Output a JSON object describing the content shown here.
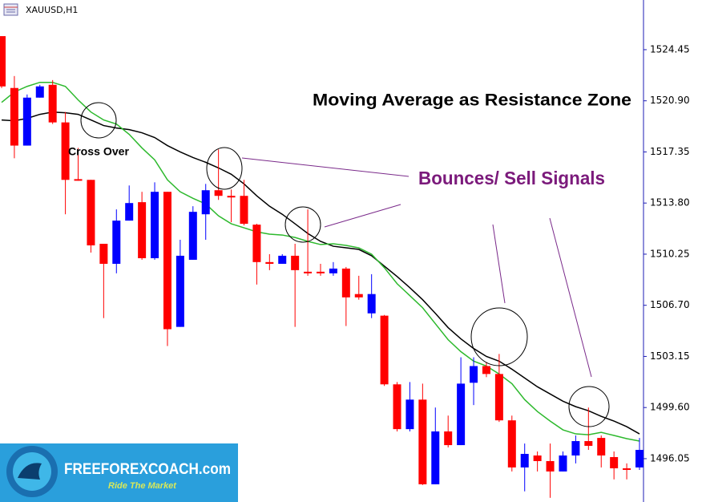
{
  "chart_data": {
    "type": "candlestick",
    "title": "XAUUSD,H1",
    "annotations": [
      "Moving Average as Resistance Zone",
      "Bounces/ Sell Signals",
      "Cross Over"
    ],
    "logo": {
      "name": "FREEFOREXCOACH.com",
      "tagline": "Ride The Market"
    },
    "up_color": "#0000ff",
    "down_color": "#ff0000",
    "ylim": [
      1493.04,
      1527.9
    ],
    "yticks": [
      1524.45,
      {
        "value": 1520.9,
        "label": "1520.90"
      },
      1517.35,
      {
        "value": 1513.8,
        "label": "1513.80"
      },
      1510.25,
      {
        "value": 1506.7,
        "label": "1506.70"
      },
      1503.15,
      {
        "value": 1499.6,
        "label": "1499.60"
      },
      1496.05
    ],
    "open": [
      1525.39,
      1521.79,
      1517.79,
      1521.12,
      1522.01,
      1519.4,
      1515.46,
      1515.41,
      1510.97,
      1509.58,
      1512.58,
      1513.86,
      1509.97,
      1514.58,
      1505.2,
      1509.86,
      1513.02,
      1514.69,
      1514.3,
      1514.3,
      1512.3,
      1509.7,
      1509.58,
      1510.14,
      1509.03,
      1509.03,
      1508.92,
      1509.25,
      1507.48,
      1506.14,
      1505.98,
      1501.21,
      1498.1,
      1500.15,
      1494.27,
      1497.94,
      1496.99,
      1501.32,
      1502.48,
      1501.93,
      1498.71,
      1495.44,
      1496.27,
      1495.88,
      1495.16,
      1496.27,
      1497.27,
      1497.49,
      1496.16,
      1495.38,
      1495.44
    ],
    "high": [
      1525.39,
      1522.62,
      1521.34,
      1522.01,
      1522.34,
      1520.12,
      1517.63,
      1515.41,
      1510.97,
      1513.36,
      1515.02,
      1514.58,
      1515.24,
      1514.58,
      1511.25,
      1513.58,
      1515.13,
      1517.52,
      1514.74,
      1515.41,
      1512.36,
      1510.25,
      1510.25,
      1510.97,
      1513.36,
      1509.58,
      1509.7,
      1509.36,
      1508.75,
      1508.86,
      1506.03,
      1501.37,
      1501.37,
      1501.26,
      1499.6,
      1499.04,
      1503.09,
      1503.09,
      1502.76,
      1503.32,
      1499.04,
      1497.1,
      1496.55,
      1497.1,
      1496.55,
      1497.66,
      1499.6,
      1497.66,
      1496.55,
      1495.72,
      1497.49
    ],
    "low": [
      1521.79,
      1516.91,
      1517.79,
      1521.12,
      1519.29,
      1513.02,
      1515.35,
      1510.36,
      1505.81,
      1508.92,
      1512.58,
      1509.86,
      1509.86,
      1503.87,
      1505.2,
      1509.86,
      1511.25,
      1514.02,
      1512.47,
      1512.25,
      1508.14,
      1509.14,
      1509.58,
      1505.2,
      1508.75,
      1508.75,
      1508.75,
      1505.26,
      1507.09,
      1505.81,
      1501.1,
      1497.94,
      1497.94,
      1494.22,
      1494.27,
      1496.83,
      1496.99,
      1499.77,
      1501.71,
      1498.6,
      1495.16,
      1493.78,
      1495.16,
      1493.33,
      1495.16,
      1495.72,
      1496.66,
      1495.44,
      1494.61,
      1494.61,
      1495.27
    ],
    "close": [
      1521.9,
      1517.79,
      1521.12,
      1521.9,
      1519.4,
      1515.41,
      1515.35,
      1510.86,
      1509.58,
      1512.58,
      1513.8,
      1509.97,
      1514.58,
      1505.04,
      1510.14,
      1513.19,
      1514.69,
      1514.3,
      1514.19,
      1512.36,
      1509.7,
      1509.58,
      1510.14,
      1509.14,
      1508.92,
      1508.92,
      1509.25,
      1507.25,
      1507.25,
      1507.48,
      1501.21,
      1498.1,
      1500.15,
      1494.27,
      1497.94,
      1496.99,
      1501.26,
      1502.48,
      1501.93,
      1498.71,
      1495.44,
      1496.38,
      1495.88,
      1495.16,
      1496.27,
      1497.27,
      1496.94,
      1496.27,
      1495.38,
      1495.27,
      1496.66
    ],
    "series": [
      {
        "color": "#000000",
        "values": [
          1519.57,
          1519.51,
          1519.68,
          1519.96,
          1520.12,
          1520.07,
          1519.96,
          1519.57,
          1519.18,
          1519.01,
          1518.9,
          1518.68,
          1518.35,
          1517.79,
          1517.35,
          1516.96,
          1516.63,
          1516.24,
          1515.8,
          1515.13,
          1514.3,
          1513.58,
          1513.02,
          1512.36,
          1511.69,
          1511.14,
          1510.8,
          1510.69,
          1510.58,
          1510.14,
          1509.42,
          1508.7,
          1507.92,
          1507.09,
          1506.14,
          1505.15,
          1504.37,
          1503.7,
          1503.15,
          1502.82,
          1502.26,
          1501.65,
          1501.04,
          1500.54,
          1500.04,
          1499.66,
          1499.38,
          1498.99,
          1498.66,
          1498.27,
          1497.77
        ]
      },
      {
        "color": "#2db92d",
        "values": [
          1520.79,
          1521.51,
          1521.9,
          1522.18,
          1522.18,
          1521.9,
          1520.96,
          1520.12,
          1519.57,
          1519.29,
          1518.57,
          1517.63,
          1516.8,
          1515.41,
          1514.58,
          1514.13,
          1513.74,
          1512.91,
          1512.36,
          1512.08,
          1511.8,
          1511.64,
          1511.58,
          1511.41,
          1511.14,
          1510.92,
          1510.97,
          1510.86,
          1510.69,
          1510.25,
          1509.31,
          1508.2,
          1507.37,
          1506.53,
          1505.42,
          1504.31,
          1503.48,
          1502.82,
          1502.48,
          1501.93,
          1501.26,
          1500.15,
          1499.32,
          1498.66,
          1498.05,
          1497.77,
          1497.71,
          1497.88,
          1497.66,
          1497.44,
          1497.27
        ]
      }
    ]
  }
}
